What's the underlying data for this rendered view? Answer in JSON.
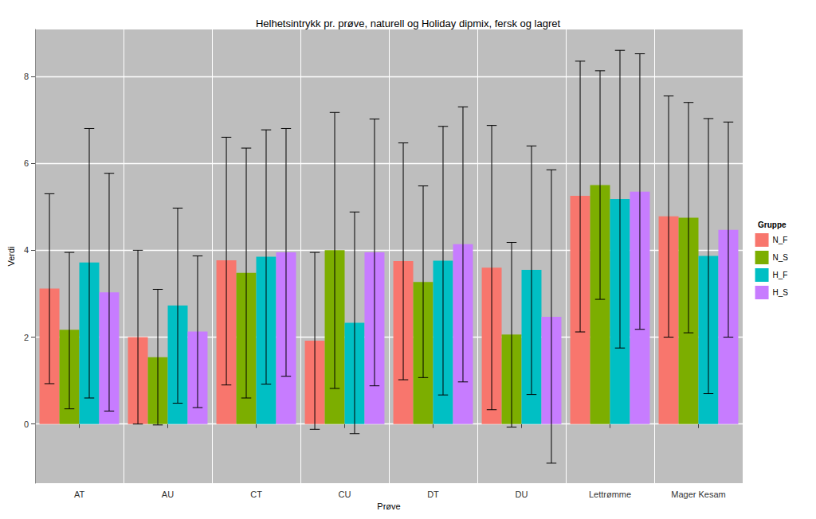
{
  "chart_data": {
    "type": "bar",
    "title": "Helhetsintrykk pr. prøve, naturell og Holiday dipmix, fersk og lagret",
    "x_label": "Prøve",
    "y_label": "Verdi",
    "categories": [
      "AT",
      "AU",
      "CT",
      "CU",
      "DT",
      "DU",
      "Lettrømme",
      "Mager Kesam"
    ],
    "series": [
      {
        "name": "N_F",
        "color": "#F8766D",
        "values": [
          3.12,
          2.0,
          3.77,
          1.92,
          3.75,
          3.6,
          5.25,
          4.78
        ],
        "error_low": [
          0.93,
          0.0,
          0.9,
          -0.12,
          1.02,
          0.33,
          2.12,
          2.0
        ],
        "error_high": [
          5.3,
          4.0,
          6.6,
          3.95,
          6.47,
          6.87,
          8.35,
          7.55
        ]
      },
      {
        "name": "N_S",
        "color": "#7CAE00",
        "values": [
          2.17,
          1.54,
          3.48,
          4.0,
          3.27,
          2.06,
          5.5,
          4.75
        ],
        "error_low": [
          0.35,
          -0.02,
          0.6,
          0.82,
          1.07,
          -0.07,
          2.87,
          2.1
        ],
        "error_high": [
          3.95,
          3.1,
          6.35,
          7.17,
          5.48,
          4.18,
          8.13,
          7.4
        ]
      },
      {
        "name": "H_F",
        "color": "#00BFC4",
        "values": [
          3.72,
          2.73,
          3.85,
          2.33,
          3.76,
          3.55,
          5.18,
          3.87
        ],
        "error_low": [
          0.6,
          0.48,
          0.92,
          -0.22,
          0.67,
          0.68,
          1.75,
          0.7
        ],
        "error_high": [
          6.8,
          4.97,
          6.77,
          4.88,
          6.85,
          6.4,
          8.6,
          7.03
        ]
      },
      {
        "name": "H_S",
        "color": "#C77CFF",
        "values": [
          3.03,
          2.13,
          3.95,
          3.95,
          4.14,
          2.47,
          5.35,
          4.47
        ],
        "error_low": [
          0.3,
          0.38,
          1.1,
          0.88,
          0.97,
          -0.9,
          2.18,
          2.0
        ],
        "error_high": [
          5.77,
          3.87,
          6.8,
          7.02,
          7.3,
          5.85,
          8.52,
          6.95
        ]
      }
    ],
    "legend_title": "Gruppe",
    "legend": "right",
    "ylim": [
      -1.36,
      9.08
    ],
    "yticks": [
      0,
      2,
      4,
      6,
      8
    ],
    "grid": true
  }
}
